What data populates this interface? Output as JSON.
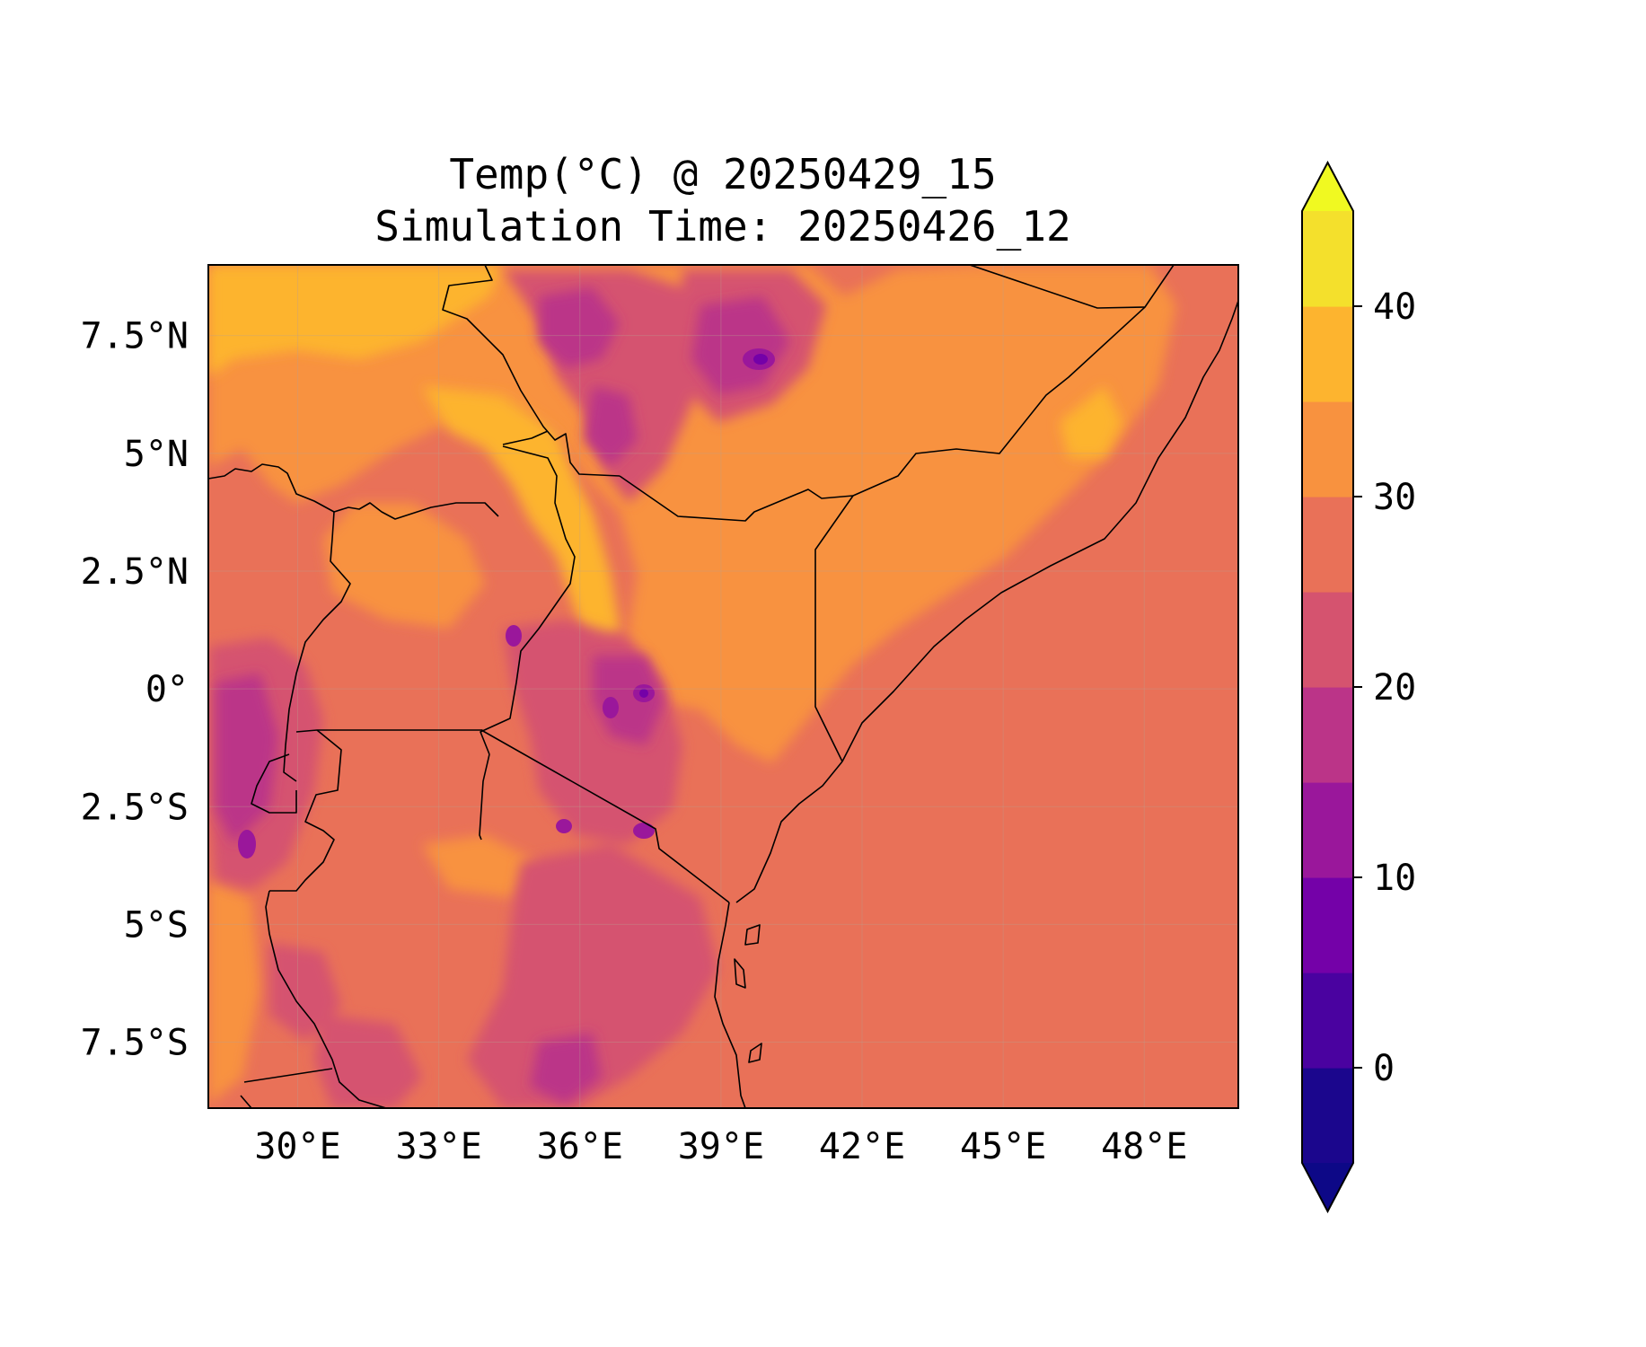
{
  "title": {
    "line1": "Temp(°C) @ 20250429_15",
    "line2": "Simulation Time: 20250426_12"
  },
  "map": {
    "lon_range": [
      28.1,
      50.0
    ],
    "lat_range": [
      -8.9,
      9.0
    ],
    "base_color": "#e97158",
    "x_ticks": [
      "30°E",
      "33°E",
      "36°E",
      "39°E",
      "42°E",
      "45°E",
      "48°E"
    ],
    "x_tick_values": [
      30,
      33,
      36,
      39,
      42,
      45,
      48
    ],
    "y_ticks": [
      "7.5°N",
      "5°N",
      "2.5°N",
      "0°",
      "2.5°S",
      "5°S",
      "7.5°S"
    ],
    "y_tick_values": [
      7.5,
      5,
      2.5,
      0,
      -2.5,
      -5,
      -7.5
    ],
    "gridlines": true,
    "features": [
      "coastlines",
      "country-borders"
    ]
  },
  "colorbar": {
    "orientation": "vertical",
    "extend": "both",
    "levels": [
      -5,
      0,
      5,
      10,
      15,
      20,
      25,
      30,
      35,
      40,
      45
    ],
    "colors": [
      "#1b068d",
      "#4a02a0",
      "#7401a8",
      "#9a179b",
      "#bb3488",
      "#d5536f",
      "#e97158",
      "#f8923f",
      "#fdb42f",
      "#f4e02c"
    ],
    "under_color": "#0d0887",
    "over_color": "#f0f921",
    "tick_labels": [
      "0",
      "10",
      "20",
      "30",
      "40"
    ],
    "tick_values": [
      0,
      10,
      20,
      30,
      40
    ]
  }
}
